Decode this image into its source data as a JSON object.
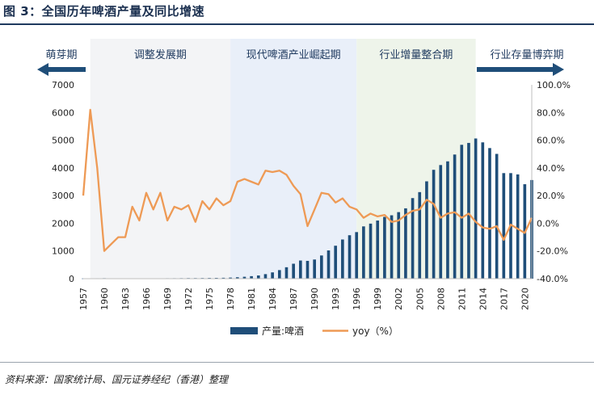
{
  "figure": {
    "title": "图 3：全国历年啤酒产量及同比增速",
    "source": "资料来源：国家统计局、国元证券经纪（香港）整理"
  },
  "colors": {
    "bar": "#1f4e79",
    "line": "#ee9a55",
    "phase_dev": "#f3f4f6",
    "phase_rise": "#e9eff9",
    "phase_consolidate": "#eef4ea",
    "arrow": "#1f4e79"
  },
  "chart_data": {
    "type": "bar+line",
    "title": "全国历年啤酒产量及同比增速",
    "x_range": [
      1957,
      2021
    ],
    "tick_years": [
      1957,
      1960,
      1963,
      1966,
      1969,
      1972,
      1975,
      1978,
      1981,
      1984,
      1987,
      1990,
      1993,
      1996,
      1999,
      2002,
      2005,
      2008,
      2011,
      2014,
      2017,
      2020
    ],
    "ylim_left": [
      0,
      7000
    ],
    "ylim_right": [
      -40,
      100
    ],
    "yticks_left": [
      0,
      1000,
      2000,
      3000,
      4000,
      5000,
      6000,
      7000
    ],
    "yticks_right": [
      -40,
      -20,
      0,
      20,
      40,
      60,
      80,
      100
    ],
    "ytick_right_labels": [
      "-40.0%",
      "-20.0%",
      "0.0%",
      "20.0%",
      "40.0%",
      "60.0%",
      "80.0%",
      "100.0%"
    ],
    "phases": [
      {
        "label": "萌芽期",
        "start": 1957,
        "end": 1958,
        "style": "arrow-left"
      },
      {
        "label": "调整发展期",
        "start": 1958,
        "end": 1978,
        "style": "dev"
      },
      {
        "label": "现代啤酒产业崛起期",
        "start": 1978,
        "end": 1996,
        "style": "rise"
      },
      {
        "label": "行业增量整合期",
        "start": 1996,
        "end": 2013,
        "style": "consolidate"
      },
      {
        "label": "行业存量博弈期",
        "start": 2013,
        "end": 2021,
        "style": "arrow-right"
      }
    ],
    "series": [
      {
        "name": "产量:啤酒",
        "type": "bar",
        "axis": "left",
        "x": [
          1957,
          1958,
          1959,
          1960,
          1961,
          1962,
          1963,
          1964,
          1965,
          1966,
          1967,
          1968,
          1969,
          1970,
          1971,
          1972,
          1973,
          1974,
          1975,
          1976,
          1977,
          1978,
          1979,
          1980,
          1981,
          1982,
          1983,
          1984,
          1985,
          1986,
          1987,
          1988,
          1989,
          1990,
          1991,
          1992,
          1993,
          1994,
          1995,
          1996,
          1997,
          1998,
          1999,
          2000,
          2001,
          2002,
          2003,
          2004,
          2005,
          2006,
          2007,
          2008,
          2009,
          2010,
          2011,
          2012,
          2013,
          2014,
          2015,
          2016,
          2017,
          2018,
          2019,
          2020,
          2021
        ],
        "values": [
          7,
          14,
          15,
          18,
          9,
          8,
          8,
          9,
          10,
          13,
          14,
          14,
          16,
          17,
          19,
          22,
          22,
          24,
          27,
          29,
          33,
          40,
          52,
          69,
          91,
          116,
          164,
          227,
          310,
          413,
          540,
          656,
          643,
          692,
          838,
          1020,
          1190,
          1415,
          1569,
          1682,
          1888,
          1988,
          2099,
          2231,
          2289,
          2403,
          2540,
          2910,
          3126,
          3515,
          3931,
          4103,
          4236,
          4483,
          4834,
          4902,
          5062,
          4922,
          4716,
          4506,
          3812,
          3812,
          3765,
          3411,
          3562
        ]
      },
      {
        "name": "yoy（%）",
        "type": "line",
        "axis": "right",
        "x": [
          1957,
          1958,
          1959,
          1960,
          1961,
          1962,
          1963,
          1964,
          1965,
          1966,
          1967,
          1968,
          1969,
          1970,
          1971,
          1972,
          1973,
          1974,
          1975,
          1976,
          1977,
          1978,
          1979,
          1980,
          1981,
          1982,
          1983,
          1984,
          1985,
          1986,
          1987,
          1988,
          1989,
          1990,
          1991,
          1992,
          1993,
          1994,
          1995,
          1996,
          1997,
          1998,
          1999,
          2000,
          2001,
          2002,
          2003,
          2004,
          2005,
          2006,
          2007,
          2008,
          2009,
          2010,
          2011,
          2012,
          2013,
          2014,
          2015,
          2016,
          2017,
          2018,
          2019,
          2020,
          2021
        ],
        "values": [
          20,
          82,
          40,
          -20,
          -15,
          -10,
          -10,
          12,
          2,
          22,
          10,
          22,
          2,
          12,
          10,
          13,
          1,
          16,
          10,
          18,
          13,
          16,
          30,
          32,
          30,
          28,
          38,
          37,
          38,
          35,
          27,
          21,
          -2,
          10,
          22,
          21,
          15,
          18,
          12,
          10,
          4,
          7,
          5,
          6,
          1,
          2,
          6,
          9,
          10,
          17,
          14,
          4,
          7,
          8,
          4,
          7,
          1,
          -3,
          -4,
          -2,
          -12,
          -1,
          -4,
          -7,
          4
        ]
      }
    ],
    "legend": [
      "产量:啤酒",
      "yoy（%）"
    ],
    "legend_position": "bottom-center",
    "grid": false
  }
}
